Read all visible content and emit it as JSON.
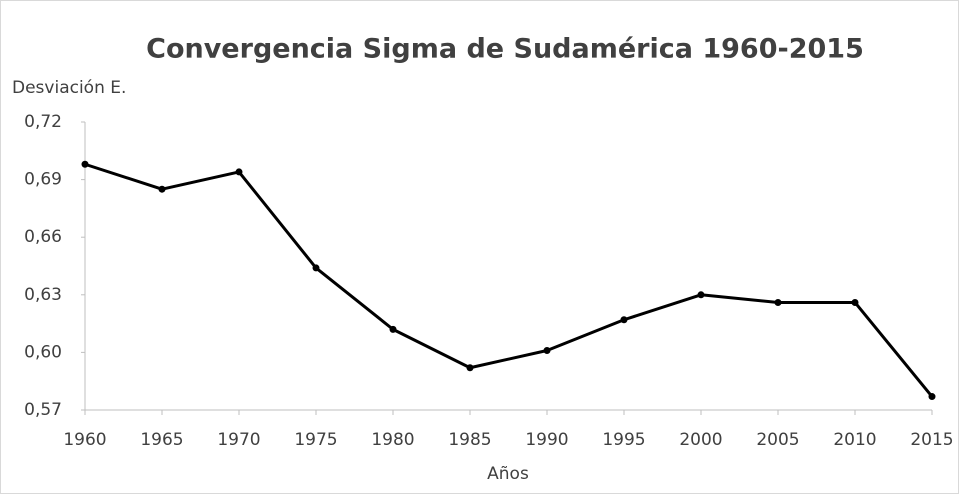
{
  "chart_data": {
    "type": "line",
    "title": "Convergencia Sigma de Sudamérica 1960-2015",
    "y_label": "Desviación E.",
    "x_label": "Años",
    "x": [
      1960,
      1965,
      1970,
      1975,
      1980,
      1985,
      1990,
      1995,
      2000,
      2005,
      2010,
      2015
    ],
    "series": [
      {
        "name": "Desviación E.",
        "color": "#000000",
        "values": [
          0.698,
          0.685,
          0.694,
          0.644,
          0.612,
          0.592,
          0.601,
          0.617,
          0.63,
          0.626,
          0.626,
          0.577
        ]
      }
    ],
    "xlim": [
      1960,
      2015
    ],
    "xticks": [
      1960,
      1965,
      1970,
      1975,
      1980,
      1985,
      1990,
      1995,
      2000,
      2005,
      2010,
      2015
    ],
    "ylim": [
      0.57,
      0.72
    ],
    "yticks": [
      {
        "value": 0.57,
        "label": "0,57"
      },
      {
        "value": 0.6,
        "label": "0,60"
      },
      {
        "value": 0.63,
        "label": "0,63"
      },
      {
        "value": 0.66,
        "label": "0,66"
      },
      {
        "value": 0.69,
        "label": "0,69"
      },
      {
        "value": 0.72,
        "label": "0,72"
      }
    ],
    "grid": false
  }
}
